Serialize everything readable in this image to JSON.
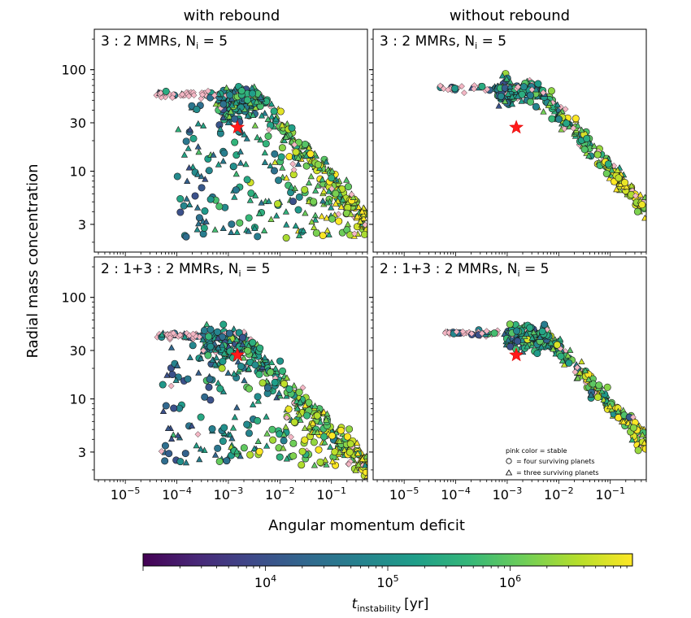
{
  "figure": {
    "col_titles": [
      "with rebound",
      "without rebound"
    ],
    "ylabel": "Radial mass concentration",
    "xlabel": "Angular momentum deficit",
    "colorbar_label_main": "t",
    "colorbar_label_sub": "instability",
    "colorbar_label_unit": "[yr]",
    "legend": {
      "line1": "pink color = stable",
      "line2": "= four surviving planets",
      "line3": "= three surviving planets"
    }
  },
  "chart_data": {
    "type": "scatter",
    "xscale": "log",
    "yscale": "log",
    "xlim": [
      2.5e-06,
      0.5
    ],
    "ylim": [
      1.6,
      250
    ],
    "x_ticks": [
      1e-05,
      0.0001,
      0.001,
      0.01,
      0.1
    ],
    "x_tick_bases": [
      "10",
      "10",
      "10",
      "10",
      "10"
    ],
    "x_tick_exps": [
      "−5",
      "−4",
      "−3",
      "−2",
      "−1"
    ],
    "y_ticks": [
      3,
      10,
      30,
      100
    ],
    "y_tick_labels": [
      "3",
      "10",
      "30",
      "100"
    ],
    "colorbar": {
      "cmap": "viridis",
      "scale": "log",
      "range": [
        1000,
        10000000
      ],
      "ticks": [
        10000,
        100000,
        1000000
      ],
      "tick_bases": [
        "10",
        "10",
        "10"
      ],
      "tick_exps": [
        "4",
        "5",
        "6"
      ]
    },
    "colors": {
      "stable": "#f4b6c4",
      "star": "#ff1a1a",
      "viridis": [
        "#440154",
        "#482878",
        "#3e4989",
        "#31688e",
        "#26828e",
        "#1f9e89",
        "#35b779",
        "#6ece58",
        "#b5de2b",
        "#fde725"
      ]
    },
    "panels": [
      {
        "label_prefix": "3 : 2 MMRs,  N",
        "label_sub": "i",
        "label_suffix": " = 5",
        "star": {
          "x": 0.0015,
          "y": 27
        },
        "rebound": true,
        "plateau": 57,
        "plateau_xmin": 4e-05,
        "knee": 0.004,
        "slope": -0.55,
        "x_end": 0.5
      },
      {
        "label_prefix": "3 : 2 MMRs,  N",
        "label_sub": "i",
        "label_suffix": " = 5",
        "star": {
          "x": 0.0015,
          "y": 27
        },
        "rebound": false,
        "plateau": 66,
        "plateau_xmin": 5e-05,
        "knee": 0.004,
        "slope": -0.55,
        "x_end": 0.5
      },
      {
        "label_prefix": "2 : 1+3 : 2 MMRs,  N",
        "label_sub": "i",
        "label_suffix": " = 5",
        "star": {
          "x": 0.0015,
          "y": 27
        },
        "rebound": true,
        "plateau": 42,
        "plateau_xmin": 4e-05,
        "knee": 0.002,
        "slope": -0.5,
        "x_end": 0.5
      },
      {
        "label_prefix": "2 : 1+3 : 2 MMRs,  N",
        "label_sub": "i",
        "label_suffix": " = 5",
        "star": {
          "x": 0.0015,
          "y": 27
        },
        "rebound": false,
        "plateau": 44,
        "plateau_xmin": 6e-05,
        "knee": 0.006,
        "slope": -0.55,
        "x_end": 0.5
      }
    ]
  }
}
